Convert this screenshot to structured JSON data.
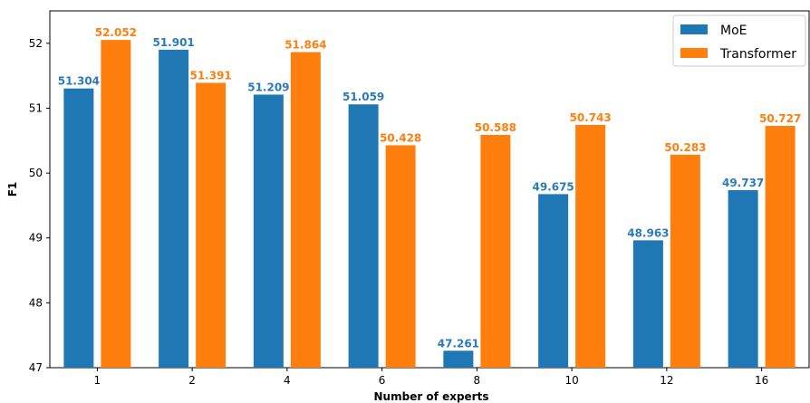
{
  "chart_data": {
    "type": "bar",
    "title": "",
    "xlabel": "Number of experts",
    "ylabel": "F1",
    "categories": [
      "1",
      "2",
      "4",
      "6",
      "8",
      "10",
      "12",
      "16"
    ],
    "ylim": [
      47,
      52.5
    ],
    "yticks": [
      "47",
      "48",
      "49",
      "50",
      "51",
      "52"
    ],
    "series": [
      {
        "name": "MoE",
        "color": "#1f77b4",
        "label_color": "#2b7bba",
        "values": [
          51.304,
          51.901,
          51.209,
          51.059,
          47.261,
          49.675,
          48.963,
          49.737
        ],
        "labels": [
          "51.304",
          "51.901",
          "51.209",
          "51.059",
          "47.261",
          "49.675",
          "48.963",
          "49.737"
        ]
      },
      {
        "name": "Transformer",
        "color": "#ff7f0e",
        "label_color": "#ff7f0e",
        "values": [
          52.052,
          51.391,
          51.864,
          50.428,
          50.588,
          50.743,
          50.283,
          50.727
        ],
        "labels": [
          "52.052",
          "51.391",
          "51.864",
          "50.428",
          "50.588",
          "50.743",
          "50.283",
          "50.727"
        ]
      }
    ],
    "legend_position": "top-right",
    "grid": false
  }
}
